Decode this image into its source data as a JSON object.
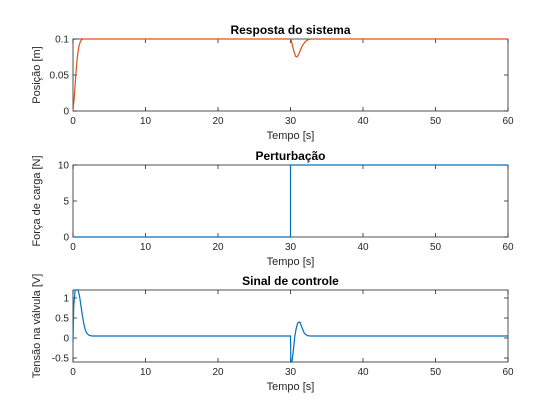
{
  "chart_data": [
    {
      "type": "line",
      "title": "Resposta do sistema",
      "xlabel": "Tempo [s]",
      "ylabel": "Posição [m]",
      "xlim": [
        0,
        60
      ],
      "ylim": [
        0,
        0.1
      ],
      "xticks": [
        0,
        10,
        20,
        30,
        40,
        50,
        60
      ],
      "xticklabels": [
        "0",
        "10",
        "20",
        "30",
        "40",
        "50",
        "60"
      ],
      "yticks": [
        0,
        0.05,
        0.1
      ],
      "yticklabels": [
        "0",
        "0.05",
        "0.1"
      ],
      "grid": false,
      "series": [
        {
          "color": "#D95319",
          "x": [
            0,
            0.2,
            0.4,
            0.6,
            0.8,
            1.0,
            1.2,
            1.4,
            1.6,
            1.8,
            2.0,
            2.5,
            30.0,
            30.1,
            30.3,
            30.5,
            30.7,
            30.9,
            31.1,
            31.3,
            31.6,
            32.0,
            32.4,
            32.8,
            60
          ],
          "y": [
            0,
            0.022,
            0.052,
            0.075,
            0.089,
            0.096,
            0.099,
            0.1,
            0.1,
            0.1,
            0.1,
            0.1,
            0.1,
            0.098,
            0.09,
            0.082,
            0.076,
            0.075,
            0.078,
            0.083,
            0.09,
            0.096,
            0.099,
            0.1,
            0.1
          ]
        }
      ]
    },
    {
      "type": "line",
      "title": "Perturbação",
      "xlabel": "Tempo [s]",
      "ylabel": "Força de carga [N]",
      "xlim": [
        0,
        60
      ],
      "ylim": [
        0,
        10
      ],
      "xticks": [
        0,
        10,
        20,
        30,
        40,
        50,
        60
      ],
      "xticklabels": [
        "0",
        "10",
        "20",
        "30",
        "40",
        "50",
        "60"
      ],
      "yticks": [
        0,
        5,
        10
      ],
      "yticklabels": [
        "0",
        "5",
        "10"
      ],
      "grid": false,
      "series": [
        {
          "color": "#0072BD",
          "x": [
            0,
            30,
            30,
            60
          ],
          "y": [
            0,
            0,
            10,
            10
          ]
        }
      ]
    },
    {
      "type": "line",
      "title": "Sinal de controle",
      "xlabel": "Tempo [s]",
      "ylabel": "Tensão na válvula [V]",
      "xlim": [
        0,
        60
      ],
      "ylim": [
        -0.6,
        1.2
      ],
      "xticks": [
        0,
        10,
        20,
        30,
        40,
        50,
        60
      ],
      "xticklabels": [
        "0",
        "10",
        "20",
        "30",
        "40",
        "50",
        "60"
      ],
      "yticks": [
        -0.5,
        0,
        0.5,
        1
      ],
      "yticklabels": [
        "-0.5",
        "0",
        "0.5",
        "1"
      ],
      "grid": false,
      "series": [
        {
          "color": "#0072BD",
          "x": [
            0,
            0.1,
            0.3,
            0.5,
            0.7,
            0.9,
            1.1,
            1.3,
            1.5,
            1.7,
            1.9,
            2.2,
            2.6,
            3.0,
            30.0,
            30.05,
            30.2,
            30.4,
            30.6,
            30.8,
            31.0,
            31.3,
            31.6,
            31.9,
            32.3,
            32.8,
            60
          ],
          "y": [
            -0.1,
            0.8,
            1.2,
            1.2,
            1.2,
            1.05,
            0.8,
            0.55,
            0.35,
            0.2,
            0.12,
            0.07,
            0.05,
            0.05,
            0.05,
            -0.6,
            -0.6,
            -0.3,
            0.05,
            0.25,
            0.38,
            0.4,
            0.25,
            0.12,
            0.06,
            0.05,
            0.05
          ]
        }
      ]
    }
  ]
}
